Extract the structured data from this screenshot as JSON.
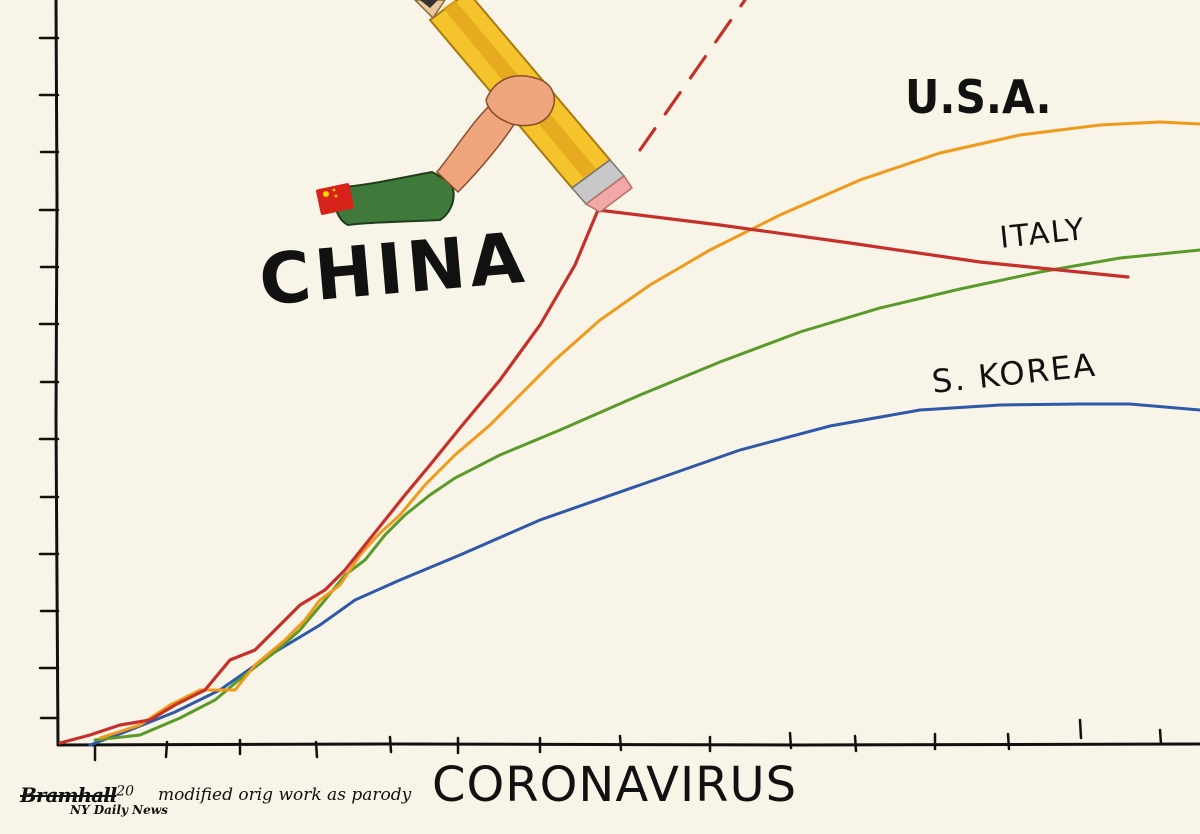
{
  "labels": {
    "usa": "U.S.A.",
    "italy": "ITALY",
    "korea": "S. KOREA",
    "china": "CHINA",
    "x_axis": "CORONAVIRUS"
  },
  "signature": {
    "name": "Bramhall",
    "year": "20",
    "paper": "NY Daily News"
  },
  "credit": "modified orig work as parody",
  "colors": {
    "background": "#f8f4e7",
    "usa": "#f09a1c",
    "italy": "#5a9a2a",
    "korea": "#2e58a8",
    "china": "#c62f2a",
    "pencil_body": "#f5c32b",
    "sleeve": "#3f7a3a",
    "skin": "#f0a67c",
    "flag": "#d8231b"
  },
  "icons": [
    "pencil-icon",
    "hand-icon",
    "china-flag-icon"
  ]
}
